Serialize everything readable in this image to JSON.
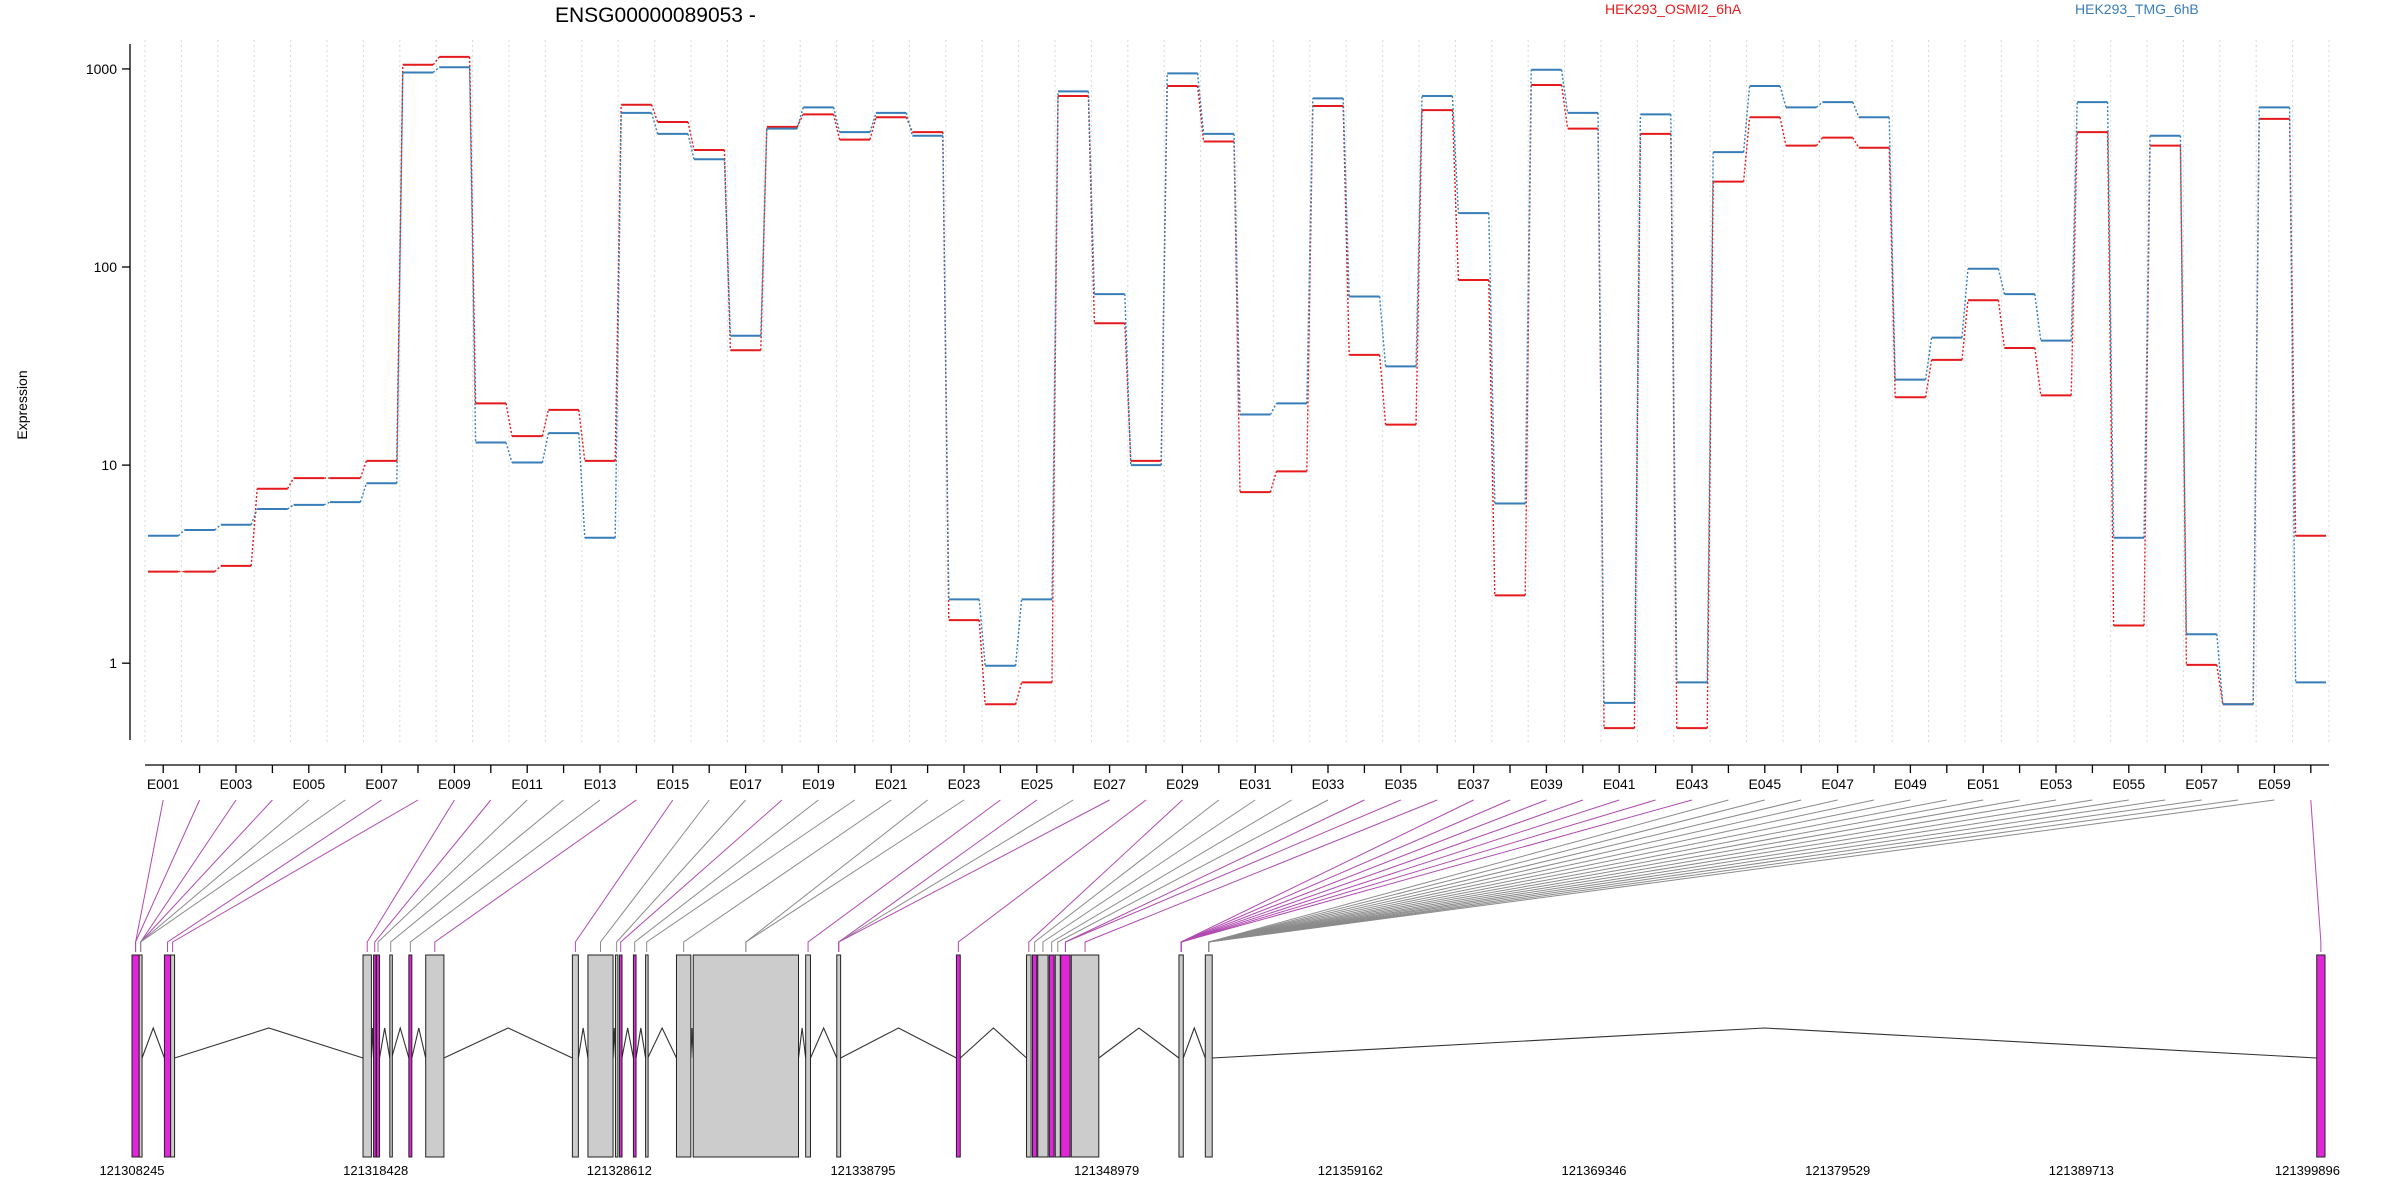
{
  "chart_data": {
    "type": "line",
    "title": "ENSG00000089053 -",
    "ylabel": "Expression",
    "yscale": "log",
    "ylim": [
      0.4,
      1400
    ],
    "yticks": [
      1,
      10,
      100,
      1000
    ],
    "ytick_labels": [
      "1",
      "10",
      "100",
      "1000"
    ],
    "grid": "vertical dotted lines at exon boundaries",
    "legend_placement": "top-right",
    "x_categories": [
      "E001",
      "E002",
      "E003",
      "E004",
      "E005",
      "E006",
      "E007",
      "E008",
      "E009",
      "E010",
      "E011",
      "E012",
      "E013",
      "E014",
      "E015",
      "E016",
      "E017",
      "E018",
      "E019",
      "E020",
      "E021",
      "E022",
      "E023",
      "E024",
      "E025",
      "E026",
      "E027",
      "E028",
      "E029",
      "E030",
      "E031",
      "E032",
      "E033",
      "E034",
      "E035",
      "E036",
      "E037",
      "E038",
      "E039",
      "E040",
      "E041",
      "E042",
      "E043",
      "E044",
      "E045",
      "E046",
      "E047",
      "E048",
      "E049",
      "E050",
      "E051",
      "E052",
      "E053",
      "E054",
      "E055",
      "E056",
      "E057",
      "E058",
      "E059",
      "E060"
    ],
    "x_tick_labels": [
      "E001",
      "E003",
      "E005",
      "E007",
      "E009",
      "E011",
      "E013",
      "E015",
      "E017",
      "E019",
      "E021",
      "E023",
      "E025",
      "E027",
      "E029",
      "E031",
      "E033",
      "E035",
      "E037",
      "E039",
      "E041",
      "E043",
      "E045",
      "E047",
      "E049",
      "E051",
      "E053",
      "E055",
      "E057",
      "E059"
    ],
    "series": [
      {
        "name": "HEK293_OSMI2_6hA",
        "color": "#e41a1c",
        "values": [
          2.9,
          2.9,
          3.1,
          7.6,
          8.6,
          8.6,
          10.5,
          1050,
          1150,
          20.5,
          14,
          19,
          10.5,
          660,
          540,
          390,
          38,
          510,
          590,
          440,
          570,
          480,
          1.65,
          0.62,
          0.8,
          730,
          52,
          10.5,
          820,
          430,
          7.3,
          9.3,
          650,
          36,
          16,
          620,
          86,
          2.2,
          830,
          500,
          0.47,
          470,
          0.47,
          270,
          570,
          410,
          450,
          400,
          22,
          34,
          68,
          39,
          22.5,
          480,
          1.55,
          410,
          0.98,
          0.62,
          560,
          4.4
        ]
      },
      {
        "name": "HEK293_TMG_6hB",
        "color": "#377eb8",
        "values": [
          4.4,
          4.7,
          5.0,
          6.0,
          6.3,
          6.5,
          8.1,
          960,
          1020,
          13,
          10.3,
          14.5,
          4.3,
          600,
          470,
          350,
          45,
          500,
          640,
          480,
          600,
          460,
          2.1,
          0.97,
          2.1,
          770,
          73,
          10.0,
          950,
          470,
          18,
          20.5,
          710,
          71,
          31.5,
          730,
          187,
          6.4,
          990,
          600,
          0.63,
          590,
          0.8,
          380,
          820,
          640,
          680,
          570,
          27,
          44,
          98,
          73,
          42.5,
          680,
          4.3,
          460,
          1.4,
          0.62,
          640,
          0.8
        ]
      }
    ]
  },
  "gene_model": {
    "coordinate_labels": [
      "121308245",
      "121318428",
      "121328612",
      "121338795",
      "121348979",
      "121359162",
      "121369346",
      "121379529",
      "121389713",
      "121399896"
    ],
    "highlight_color": "#e026d8",
    "exon_color": "#cccccc",
    "exons": [
      {
        "s": 121308245,
        "e": 121308545,
        "h": true
      },
      {
        "s": 121308545,
        "e": 121308665,
        "h": false
      },
      {
        "s": 121309600,
        "e": 121309860,
        "h": true
      },
      {
        "s": 121309860,
        "e": 121310025,
        "h": false
      },
      {
        "s": 121317900,
        "e": 121318250,
        "h": false
      },
      {
        "s": 121318340,
        "e": 121318440,
        "h": true
      },
      {
        "s": 121318465,
        "e": 121318590,
        "h": true
      },
      {
        "s": 121319020,
        "e": 121319095,
        "h": false
      },
      {
        "s": 121319815,
        "e": 121319940,
        "h": true
      },
      {
        "s": 121320520,
        "e": 121321280,
        "h": false
      },
      {
        "s": 121326650,
        "e": 121326900,
        "h": false
      },
      {
        "s": 121327300,
        "e": 121328350,
        "h": false
      },
      {
        "s": 121328450,
        "e": 121328550,
        "h": false
      },
      {
        "s": 121328620,
        "e": 121328720,
        "h": true
      },
      {
        "s": 121329200,
        "e": 121329310,
        "h": true
      },
      {
        "s": 121329710,
        "e": 121329800,
        "h": false
      },
      {
        "s": 121331000,
        "e": 121331600,
        "h": false
      },
      {
        "s": 121331700,
        "e": 121336100,
        "h": false
      },
      {
        "s": 121336400,
        "e": 121336600,
        "h": false
      },
      {
        "s": 121337700,
        "e": 121337860,
        "h": false
      },
      {
        "s": 121342700,
        "e": 121342860,
        "h": true
      },
      {
        "s": 121345630,
        "e": 121345820,
        "h": false
      },
      {
        "s": 121345880,
        "e": 121346060,
        "h": true
      },
      {
        "s": 121346100,
        "e": 121346530,
        "h": false
      },
      {
        "s": 121346580,
        "e": 121346780,
        "h": true
      },
      {
        "s": 121346830,
        "e": 121347040,
        "h": false
      },
      {
        "s": 121347060,
        "e": 121347450,
        "h": true
      },
      {
        "s": 121347500,
        "e": 121348650,
        "h": false
      },
      {
        "s": 121352000,
        "e": 121352180,
        "h": false
      },
      {
        "s": 121353100,
        "e": 121353390,
        "h": false
      },
      {
        "s": 121399550,
        "e": 121399896,
        "h": true
      }
    ],
    "exon_to_segment": [
      0,
      0,
      1,
      1,
      1,
      1,
      2,
      3,
      4,
      5,
      6,
      7,
      8,
      9,
      10,
      11,
      12,
      13,
      14,
      15,
      16,
      17,
      17,
      18,
      19,
      19,
      19,
      20,
      21,
      22,
      23,
      24,
      25,
      26,
      26,
      27,
      28,
      28,
      28,
      28,
      28,
      28,
      28,
      29,
      29,
      29,
      29,
      29,
      29,
      29,
      29,
      29,
      29,
      29,
      29,
      29,
      29,
      29,
      29,
      30
    ],
    "exon_highlight": [
      true,
      true,
      true,
      true,
      false,
      false,
      true,
      true,
      true,
      true,
      false,
      false,
      false,
      true,
      true,
      false,
      false,
      true,
      false,
      false,
      false,
      false,
      false,
      true,
      true,
      false,
      true,
      true,
      true,
      false,
      false,
      false,
      false,
      true,
      true,
      true,
      true,
      true,
      true,
      true,
      true,
      true,
      true,
      false,
      false,
      false,
      false,
      false,
      false,
      false,
      false,
      false,
      false,
      false,
      false,
      false,
      false,
      false,
      false,
      true
    ]
  }
}
